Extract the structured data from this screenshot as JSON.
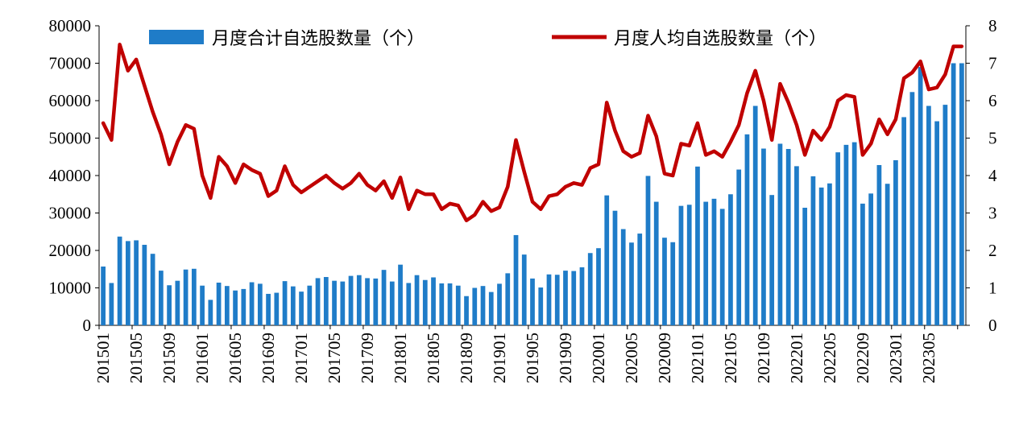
{
  "chart_data": {
    "type": "bar+line",
    "title": "",
    "xlabel": "",
    "ylabel": "",
    "ylim_left": [
      0,
      80000
    ],
    "ylim_right": [
      0,
      8
    ],
    "yticks_left": [
      "0",
      "10000",
      "20000",
      "30000",
      "40000",
      "50000",
      "60000",
      "70000",
      "80000"
    ],
    "yticks_right": [
      "0",
      "1",
      "2",
      "3",
      "4",
      "5",
      "6",
      "7",
      "8"
    ],
    "xtick_labels": [
      "201501",
      "201505",
      "201509",
      "201601",
      "201605",
      "201609",
      "201701",
      "201705",
      "201709",
      "201801",
      "201805",
      "201809",
      "201901",
      "201905",
      "201909",
      "202001",
      "202005",
      "202009",
      "202101",
      "202105",
      "202109",
      "202201",
      "202205",
      "202209",
      "202301",
      "202305"
    ],
    "legend": {
      "position": "top"
    },
    "categories": [
      "201501",
      "201502",
      "201503",
      "201504",
      "201505",
      "201506",
      "201507",
      "201508",
      "201509",
      "201510",
      "201511",
      "201512",
      "201601",
      "201602",
      "201603",
      "201604",
      "201605",
      "201606",
      "201607",
      "201608",
      "201609",
      "201610",
      "201611",
      "201612",
      "201701",
      "201702",
      "201703",
      "201704",
      "201705",
      "201706",
      "201707",
      "201708",
      "201709",
      "201710",
      "201711",
      "201712",
      "201801",
      "201802",
      "201803",
      "201804",
      "201805",
      "201806",
      "201807",
      "201808",
      "201809",
      "201810",
      "201811",
      "201812",
      "201901",
      "201902",
      "201903",
      "201904",
      "201905",
      "201906",
      "201907",
      "201908",
      "201909",
      "201910",
      "201911",
      "201912",
      "202001",
      "202002",
      "202003",
      "202004",
      "202005",
      "202006",
      "202007",
      "202008",
      "202009",
      "202010",
      "202011",
      "202012",
      "202101",
      "202102",
      "202103",
      "202104",
      "202105",
      "202106",
      "202107",
      "202108",
      "202109",
      "202110",
      "202111",
      "202112",
      "202201",
      "202202",
      "202203",
      "202204",
      "202205",
      "202206",
      "202207",
      "202208",
      "202209",
      "202210",
      "202211",
      "202212",
      "202301",
      "202302",
      "202303",
      "202304",
      "202305",
      "202306",
      "202307",
      "202308",
      "202309"
    ],
    "series": [
      {
        "name": "月度合计自选股数量（个）",
        "type": "bar",
        "axis": "left",
        "color": "#1f7cc8",
        "values": [
          15700,
          11300,
          23700,
          22500,
          22700,
          21500,
          19100,
          14600,
          10700,
          11900,
          14900,
          15100,
          10600,
          6800,
          11400,
          10500,
          9300,
          9700,
          11500,
          11100,
          8400,
          8700,
          11800,
          10400,
          9000,
          10600,
          12600,
          12900,
          11900,
          11700,
          13200,
          13400,
          12600,
          12500,
          14800,
          11700,
          16200,
          11300,
          13400,
          12100,
          12800,
          11200,
          11200,
          10600,
          7800,
          10000,
          10500,
          8900,
          11100,
          13900,
          24100,
          18900,
          12500,
          10100,
          13600,
          13500,
          14600,
          14500,
          15500,
          19300,
          20600,
          34700,
          30600,
          25700,
          22100,
          24500,
          39900,
          33000,
          23400,
          22200,
          31900,
          32200,
          42400,
          33000,
          33800,
          31100,
          35000,
          41600,
          51000,
          58600,
          47200,
          34800,
          48500,
          47100,
          42500,
          31400,
          39800,
          36800,
          37900,
          46200,
          48200,
          48900,
          32500,
          35200,
          42800,
          37800,
          44100,
          55600,
          62300,
          69000,
          58600,
          54500,
          58900,
          70000,
          70000
        ]
      },
      {
        "name": "月度人均自选股数量（个）",
        "type": "line",
        "axis": "right",
        "color": "#c00000",
        "values": [
          5.4,
          4.95,
          7.5,
          6.8,
          7.1,
          6.4,
          5.7,
          5.1,
          4.3,
          4.9,
          5.35,
          5.25,
          4.0,
          3.4,
          4.5,
          4.25,
          3.8,
          4.3,
          4.15,
          4.05,
          3.45,
          3.6,
          4.25,
          3.75,
          3.55,
          3.7,
          3.85,
          4.0,
          3.8,
          3.65,
          3.8,
          4.05,
          3.75,
          3.6,
          3.85,
          3.4,
          3.95,
          3.1,
          3.6,
          3.5,
          3.5,
          3.1,
          3.25,
          3.2,
          2.8,
          2.95,
          3.3,
          3.05,
          3.15,
          3.7,
          4.95,
          4.1,
          3.3,
          3.1,
          3.45,
          3.5,
          3.7,
          3.8,
          3.75,
          4.2,
          4.3,
          5.95,
          5.2,
          4.65,
          4.5,
          4.6,
          5.6,
          5.05,
          4.05,
          4.0,
          4.85,
          4.8,
          5.4,
          4.55,
          4.65,
          4.5,
          4.9,
          5.35,
          6.2,
          6.8,
          6.0,
          4.95,
          6.45,
          5.95,
          5.35,
          4.55,
          5.2,
          4.95,
          5.3,
          6.0,
          6.15,
          6.1,
          4.55,
          4.85,
          5.5,
          5.1,
          5.5,
          6.6,
          6.75,
          7.05,
          6.3,
          6.35,
          6.7,
          7.45,
          7.45
        ]
      }
    ]
  }
}
